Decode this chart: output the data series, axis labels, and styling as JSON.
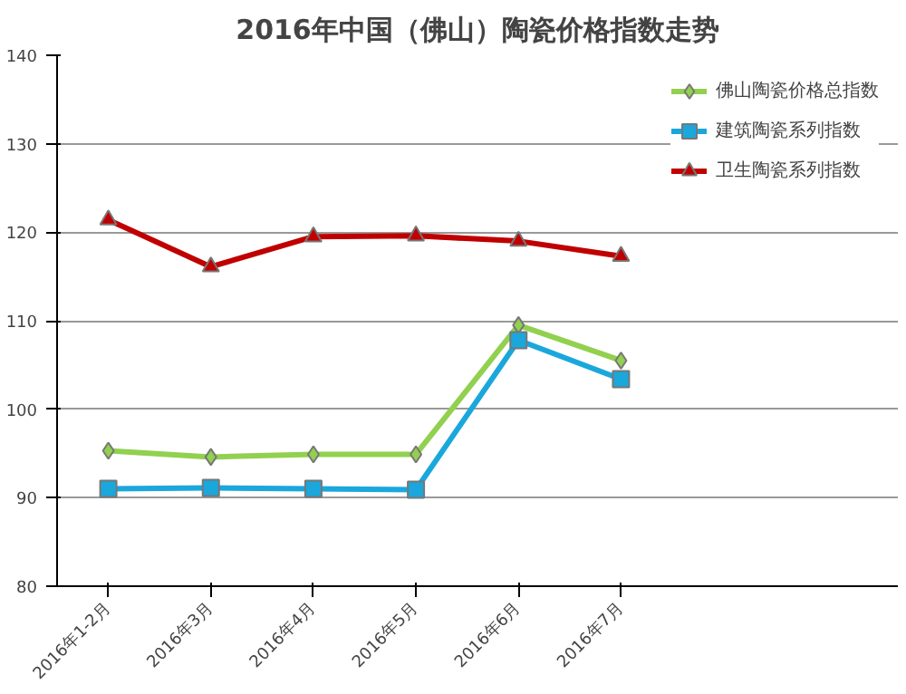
{
  "chart_data": {
    "type": "line",
    "title": "2016年中国（佛山）陶瓷价格指数走势",
    "categories": [
      "2016年1-2月",
      "2016年3月",
      "2016年4月",
      "2016年5月",
      "2016年6月",
      "2016年7月"
    ],
    "series": [
      {
        "name": "佛山陶瓷价格总指数",
        "color": "#92d050",
        "marker": "diamond",
        "values": [
          95.3,
          94.6,
          94.9,
          94.9,
          109.5,
          105.5
        ]
      },
      {
        "name": "建筑陶瓷系列指数",
        "color": "#1aa7dc",
        "marker": "square",
        "values": [
          91.0,
          91.1,
          91.0,
          90.9,
          107.8,
          103.4
        ]
      },
      {
        "name": "卫生陶瓷系列指数",
        "color": "#c00000",
        "marker": "triangle",
        "values": [
          121.4,
          116.1,
          119.5,
          119.6,
          119.0,
          117.3
        ]
      }
    ],
    "ylim": [
      80,
      140
    ],
    "yticks": [
      80,
      90,
      100,
      110,
      120,
      130,
      140
    ],
    "grid": "y",
    "legend": "top right",
    "line_style": "solid"
  }
}
